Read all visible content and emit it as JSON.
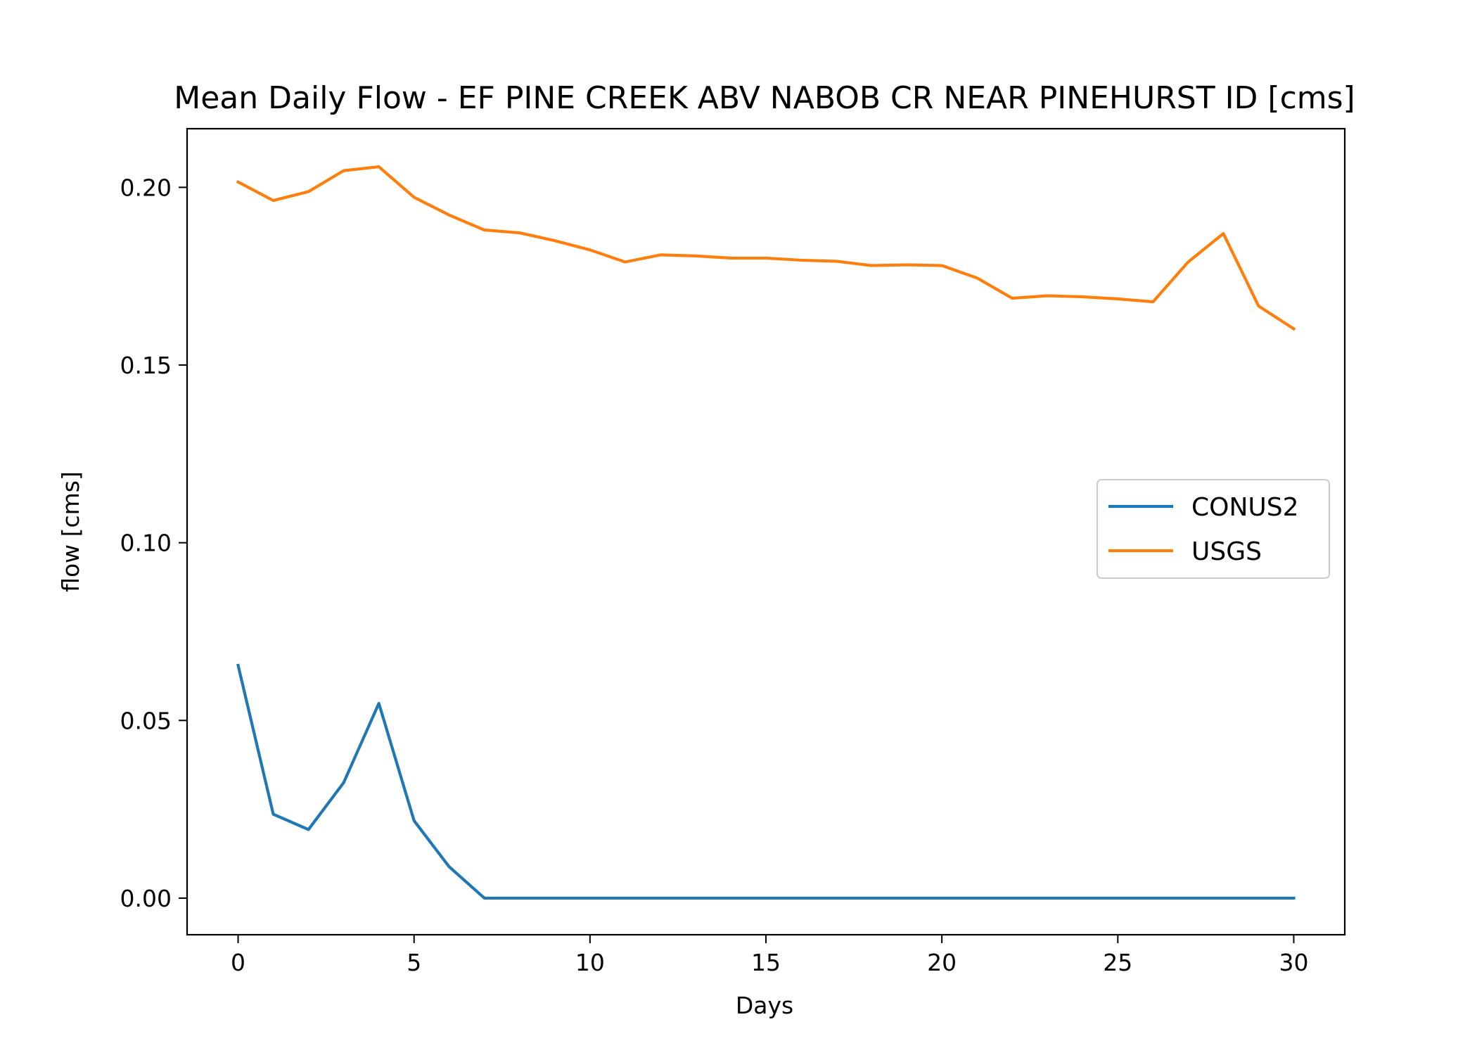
{
  "chart_data": {
    "type": "line",
    "title": "Mean Daily Flow - EF PINE CREEK ABV NABOB CR NEAR PINEHURST ID [cms]",
    "xlabel": "Days",
    "ylabel": "flow [cms]",
    "xlim": [
      -1.45,
      31.45
    ],
    "ylim": [
      -0.0103,
      0.2165
    ],
    "xticks": [
      0,
      5,
      10,
      15,
      20,
      25,
      30
    ],
    "xtick_labels": [
      "0",
      "5",
      "10",
      "15",
      "20",
      "25",
      "30"
    ],
    "yticks": [
      0.0,
      0.05,
      0.1,
      0.15,
      0.2
    ],
    "ytick_labels": [
      "0.00",
      "0.05",
      "0.10",
      "0.15",
      "0.20"
    ],
    "grid": false,
    "legend": "center-right",
    "x": [
      0,
      1,
      2,
      3,
      4,
      5,
      6,
      7,
      8,
      9,
      10,
      11,
      12,
      13,
      14,
      15,
      16,
      17,
      18,
      19,
      20,
      21,
      22,
      23,
      24,
      25,
      26,
      27,
      28,
      29,
      30
    ],
    "series": [
      {
        "name": "CONUS2",
        "color": "#1f77b4",
        "values": [
          0.0655,
          0.0236,
          0.0193,
          0.0325,
          0.0548,
          0.0218,
          0.0088,
          0.0,
          0.0,
          0.0,
          0.0,
          0.0,
          0.0,
          0.0,
          0.0,
          0.0,
          0.0,
          0.0,
          0.0,
          0.0,
          0.0,
          0.0,
          0.0,
          0.0,
          0.0,
          0.0,
          0.0,
          0.0,
          0.0,
          0.0,
          0.0
        ]
      },
      {
        "name": "USGS",
        "color": "#ff7f0e",
        "values": [
          0.2015,
          0.1963,
          0.1988,
          0.2047,
          0.2058,
          0.1972,
          0.1922,
          0.188,
          0.1872,
          0.185,
          0.1824,
          0.179,
          0.181,
          0.1807,
          0.1801,
          0.1801,
          0.1795,
          0.1792,
          0.178,
          0.1782,
          0.178,
          0.1745,
          0.1688,
          0.1695,
          0.1692,
          0.1686,
          0.1678,
          0.179,
          0.187,
          0.1666,
          0.1602
        ]
      }
    ]
  }
}
